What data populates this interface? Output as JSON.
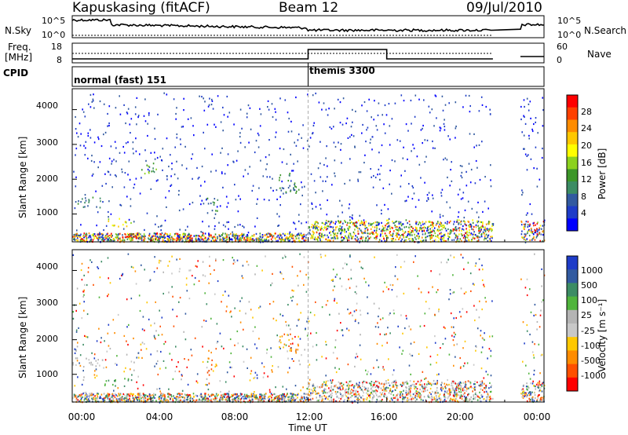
{
  "header": {
    "radar": "Kapuskasing (fitACF)",
    "beam": "Beam 12",
    "date": "09/Jul/2010"
  },
  "panels": {
    "nsky": {
      "label": "N.Sky",
      "left_ticks": [
        "10^5",
        "10^0"
      ],
      "right_ticks": [
        "10^5",
        "10^0"
      ],
      "right_label": "N.Search"
    },
    "freq": {
      "label_top": "Freq.",
      "label_bottom": "[MHz]",
      "left_ticks": [
        "18",
        "8"
      ],
      "right_ticks": [
        "60",
        "0"
      ],
      "right_label": "Nave"
    },
    "cpid": {
      "label": "CPID",
      "modes": [
        {
          "name": "normal (fast) 151",
          "start_hour": 0
        },
        {
          "name": "themis 3300",
          "start_hour": 12
        }
      ]
    }
  },
  "chart_data": [
    {
      "type": "heatmap",
      "name": "power",
      "ylabel": "Slant Range [km]",
      "yticks": [
        1000,
        2000,
        3000,
        4000
      ],
      "ylim": [
        200,
        4600
      ],
      "xlim": [
        0,
        24
      ],
      "colorbar": {
        "label": "Power [dB]",
        "ticks": [
          "28",
          "24",
          "20",
          "16",
          "12",
          "8",
          "4"
        ],
        "colors": [
          "#ff0000",
          "#ff4000",
          "#ff8c00",
          "#ffc800",
          "#ffff00",
          "#8cd21e",
          "#3c9628",
          "#3c8c64",
          "#325aa0",
          "#1e3cc8",
          "#0000ff"
        ]
      },
      "data_gap_hours": [
        21.4,
        22.8
      ],
      "features": [
        {
          "x": [
            0.0,
            1.6
          ],
          "y": [
            1200,
            1500
          ],
          "level": 8
        },
        {
          "x": [
            1.6,
            3.0
          ],
          "y": [
            650,
            900
          ],
          "level": 18
        },
        {
          "x": [
            3.5,
            4.3
          ],
          "y": [
            2100,
            2500
          ],
          "level": 12
        },
        {
          "x": [
            6.8,
            7.4
          ],
          "y": [
            1000,
            1500
          ],
          "level": 10
        },
        {
          "x": [
            10.5,
            11.5
          ],
          "y": [
            1600,
            2200
          ],
          "level": 8
        },
        {
          "x": [
            12.0,
            21.4
          ],
          "y": [
            250,
            850
          ],
          "level": 14
        }
      ]
    },
    {
      "type": "heatmap",
      "name": "velocity",
      "ylabel": "Slant Range [km]",
      "yticks": [
        1000,
        2000,
        3000,
        4000
      ],
      "ylim": [
        200,
        4600
      ],
      "xlim": [
        0,
        24
      ],
      "xlabel": "Time UT",
      "xticks": [
        "00:00",
        "04:00",
        "08:00",
        "12:00",
        "16:00",
        "20:00",
        "00:00"
      ],
      "colorbar": {
        "label": "Velocity [m s⁻¹]",
        "ticks": [
          "1000",
          "500",
          "100",
          "25",
          "-25",
          "-100",
          "-500",
          "-1000"
        ],
        "colors": [
          "#1e3cc8",
          "#325aa0",
          "#3c8c64",
          "#50b43c",
          "#b4b4b4",
          "#c8c8c8",
          "#ffc800",
          "#ff8c00",
          "#ff5000",
          "#ff0000"
        ]
      },
      "data_gap_hours": [
        21.4,
        22.8
      ],
      "features": [
        {
          "x": [
            0.0,
            1.6
          ],
          "y": [
            1200,
            1500
          ],
          "velocity": 0
        },
        {
          "x": [
            1.6,
            3.0
          ],
          "y": [
            650,
            900
          ],
          "velocity": 60
        },
        {
          "x": [
            6.8,
            7.4
          ],
          "y": [
            1000,
            1500
          ],
          "velocity": -300
        },
        {
          "x": [
            10.5,
            11.5
          ],
          "y": [
            1600,
            2200
          ],
          "velocity": -400
        },
        {
          "x": [
            12.0,
            21.4
          ],
          "y": [
            250,
            850
          ],
          "velocity": 0
        }
      ]
    }
  ]
}
